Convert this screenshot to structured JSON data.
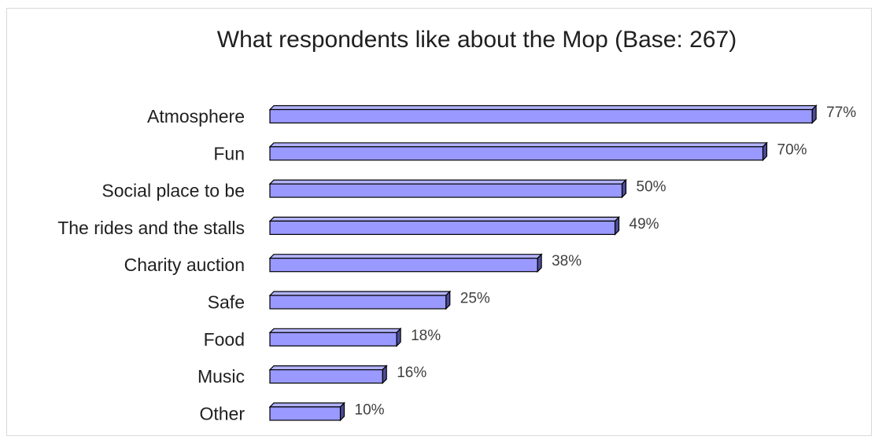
{
  "chart_data": {
    "type": "bar",
    "orientation": "horizontal",
    "title": "What respondents like about the Mop (Base: 267)",
    "categories": [
      "Atmosphere",
      "Fun",
      "Social place to be",
      "The rides and the stalls",
      "Charity auction",
      "Safe",
      "Food",
      "Music",
      "Other"
    ],
    "values": [
      77,
      70,
      50,
      49,
      38,
      25,
      18,
      16,
      10
    ],
    "value_labels": [
      "77%",
      "70%",
      "50%",
      "49%",
      "38%",
      "25%",
      "18%",
      "16%",
      "10%"
    ],
    "unit": "%",
    "xlim": [
      0,
      80
    ],
    "grid": false,
    "legend": "none",
    "bar_style": "3d",
    "colors": {
      "bar_face": "#9999ff",
      "bar_top": "#b3b3ff",
      "bar_side": "#4d4d99",
      "bar_outline": "#000000"
    }
  }
}
